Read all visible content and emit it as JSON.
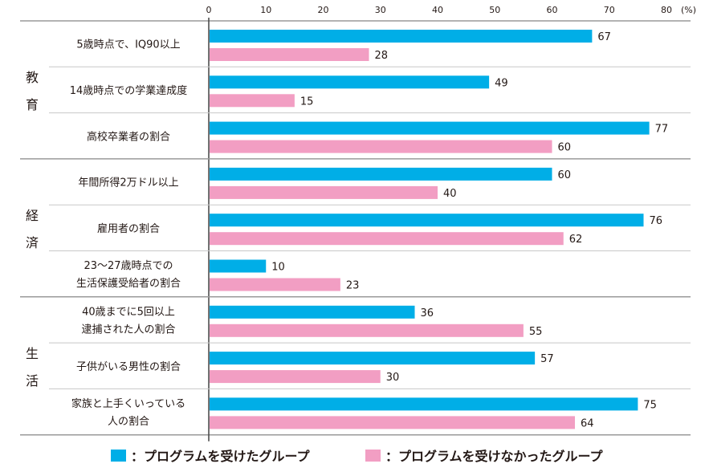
{
  "unit_label": "(%)",
  "colors": {
    "received": "#00aee7",
    "not_received": "#f29ec3"
  },
  "legend": {
    "received": "：プログラムを受けたグループ",
    "not_received": "：プログラムを受けなかったグループ"
  },
  "groups": [
    {
      "name_lines": [
        "教",
        "育"
      ]
    },
    {
      "name_lines": [
        "経",
        "済"
      ]
    },
    {
      "name_lines": [
        "生",
        "活"
      ]
    }
  ],
  "chart_data": {
    "type": "bar",
    "orientation": "horizontal",
    "xlim": [
      0,
      80
    ],
    "ticks": [
      0,
      10,
      20,
      30,
      40,
      50,
      60,
      70,
      80
    ],
    "categories": [
      "5歳時点で、IQ90以上",
      "14歳時点での学業達成度",
      "高校卒業者の割合",
      "年間所得2万ドル以上",
      "雇用者の割合",
      "23～27歳時点での\n生活保護受給者の割合",
      "40歳までに5回以上\n逮捕された人の割合",
      "子供がいる男性の割合",
      "家族と上手くいっている\n人の割合"
    ],
    "series": [
      {
        "name": "プログラムを受けたグループ",
        "values": [
          67,
          49,
          77,
          60,
          76,
          10,
          36,
          57,
          75
        ]
      },
      {
        "name": "プログラムを受けなかったグループ",
        "values": [
          28,
          15,
          60,
          40,
          62,
          23,
          55,
          30,
          64
        ]
      }
    ]
  }
}
